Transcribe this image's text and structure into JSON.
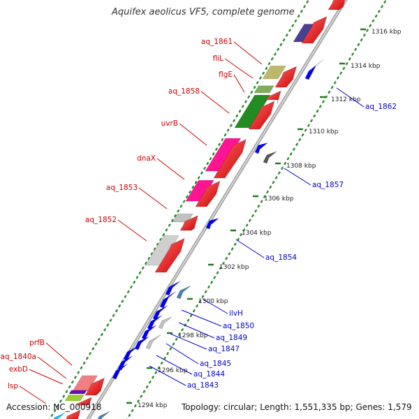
{
  "title": "Aquifex aeolicus VF5, complete genome",
  "footer": {
    "accession": "Accession: NC_000918",
    "topology": "Topology: circular; Length: 1,551,335 bp; Genes: 1,579"
  },
  "colors": {
    "backbone": "#a8a8a8",
    "tick": "#228b22",
    "label_forward": "#cc0000",
    "label_reverse": "#0000cc",
    "forward_arrow": "#ff0000",
    "reverse_arrow": "#0000ff"
  },
  "ticks": [
    {
      "label": "1316 kbp"
    },
    {
      "label": "1314 kbp"
    },
    {
      "label": "1312 kbp"
    },
    {
      "label": "1310 kbp"
    },
    {
      "label": "1308 kbp"
    },
    {
      "label": "1306 kbp"
    },
    {
      "label": "1304 kbp"
    },
    {
      "label": "1302 kbp"
    },
    {
      "label": "1300 kbp"
    },
    {
      "label": "1298 kbp"
    },
    {
      "label": "1296 kbp"
    },
    {
      "label": "1294 kbp"
    }
  ],
  "forward_labels": [
    {
      "text": "aq_1861"
    },
    {
      "text": "fliL"
    },
    {
      "text": "flgE"
    },
    {
      "text": "aq_1858"
    },
    {
      "text": "uvrB"
    },
    {
      "text": "dnaX"
    },
    {
      "text": "aq_1853"
    },
    {
      "text": "aq_1852"
    },
    {
      "text": "prfB"
    },
    {
      "text": "aq_1840a"
    },
    {
      "text": "exbD"
    },
    {
      "text": "lsp"
    }
  ],
  "reverse_labels": [
    {
      "text": "aq_1862"
    },
    {
      "text": "aq_1857"
    },
    {
      "text": "aq_1854"
    },
    {
      "text": "ilvH"
    },
    {
      "text": "aq_1850"
    },
    {
      "text": "aq_1849"
    },
    {
      "text": "aq_1847"
    },
    {
      "text": "aq_1845"
    },
    {
      "text": "aq_1844"
    },
    {
      "text": "aq_1843"
    }
  ]
}
